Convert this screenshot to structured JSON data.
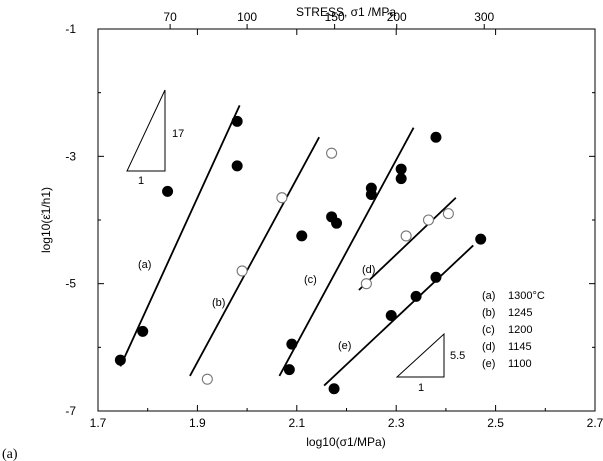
{
  "panel_label": "(a)",
  "chart_data": {
    "type": "scatter",
    "x_axis": {
      "label": "log10(σ1/MPa)",
      "range": [
        1.7,
        2.7
      ],
      "ticks": [
        "1.7",
        "1.9",
        "2.1",
        "2.3",
        "2.5",
        "2.7"
      ]
    },
    "y_axis": {
      "label": "log10(ε̇1/h1)",
      "range": [
        -7,
        -1
      ],
      "ticks": [
        "-1",
        "-3",
        "-5",
        "-7"
      ]
    },
    "top_axis": {
      "label": "STRESS, σ1 /MPa",
      "ticks": [
        {
          "value": 70,
          "label": "70"
        },
        {
          "value": 100,
          "label": "100"
        },
        {
          "value": 150,
          "label": "150"
        },
        {
          "value": 200,
          "label": "200"
        },
        {
          "value": 300,
          "label": "300"
        }
      ]
    },
    "series": [
      {
        "id": "a",
        "label": "(a)",
        "marker": "filled",
        "points": [
          [
            1.745,
            -6.2
          ],
          [
            1.79,
            -5.75
          ],
          [
            1.84,
            -3.55
          ],
          [
            1.98,
            -3.15
          ],
          [
            1.98,
            -2.45
          ]
        ],
        "fit": [
          [
            1.745,
            -6.3
          ],
          [
            1.985,
            -2.2
          ]
        ]
      },
      {
        "id": "b",
        "label": "(b)",
        "marker": "open",
        "points": [
          [
            1.92,
            -6.5
          ],
          [
            1.99,
            -4.8
          ],
          [
            2.07,
            -3.65
          ],
          [
            2.17,
            -2.95
          ]
        ],
        "fit": [
          [
            1.885,
            -6.45
          ],
          [
            2.145,
            -2.7
          ]
        ]
      },
      {
        "id": "c",
        "label": "(c)",
        "marker": "filled",
        "points": [
          [
            2.085,
            -6.35
          ],
          [
            2.09,
            -5.95
          ],
          [
            2.11,
            -4.25
          ],
          [
            2.17,
            -3.95
          ],
          [
            2.18,
            -4.05
          ],
          [
            2.25,
            -3.6
          ],
          [
            2.25,
            -3.5
          ],
          [
            2.31,
            -3.35
          ],
          [
            2.31,
            -3.2
          ],
          [
            2.38,
            -2.7
          ],
          [
            2.175,
            -6.65
          ]
        ],
        "fit": [
          [
            2.065,
            -6.45
          ],
          [
            2.335,
            -2.55
          ]
        ]
      },
      {
        "id": "d",
        "label": "(d)",
        "marker": "open",
        "points": [
          [
            2.24,
            -5.0
          ],
          [
            2.32,
            -4.25
          ],
          [
            2.365,
            -4.0
          ],
          [
            2.405,
            -3.9
          ]
        ],
        "fit": [
          [
            2.225,
            -5.1
          ],
          [
            2.42,
            -3.65
          ]
        ]
      },
      {
        "id": "e",
        "label": "(e)",
        "marker": "filled",
        "points": [
          [
            2.29,
            -5.5
          ],
          [
            2.34,
            -5.2
          ],
          [
            2.38,
            -4.9
          ],
          [
            2.47,
            -4.3
          ]
        ],
        "fit": [
          [
            2.155,
            -6.6
          ],
          [
            2.455,
            -4.4
          ]
        ]
      }
    ],
    "legend": {
      "position": "bottom-right",
      "entries": [
        {
          "key": "(a)",
          "value": "1300°C"
        },
        {
          "key": "(b)",
          "value": "1245"
        },
        {
          "key": "(c)",
          "value": "1200"
        },
        {
          "key": "(d)",
          "value": "1145"
        },
        {
          "key": "(e)",
          "value": "1100"
        }
      ]
    },
    "slope_triangles": [
      {
        "rise_label": "17",
        "run_label": "1",
        "position": "top-left"
      },
      {
        "rise_label": "5.5",
        "run_label": "1",
        "position": "bottom-right"
      }
    ]
  }
}
